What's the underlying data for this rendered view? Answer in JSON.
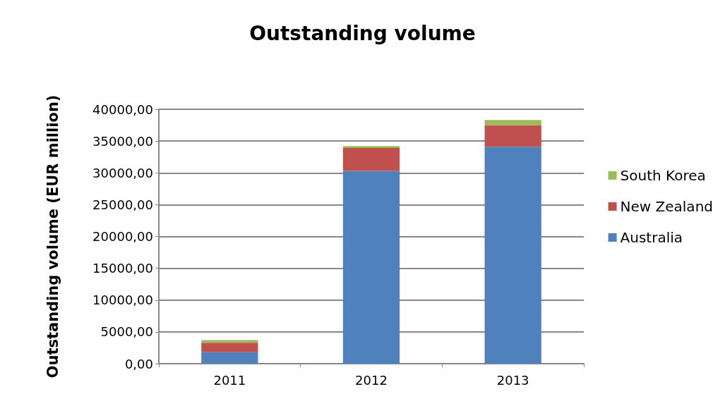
{
  "chart_data": {
    "type": "bar",
    "title": "Outstanding volume",
    "ylabel": "Outstanding volume (EUR million)",
    "categories": [
      "2011",
      "2012",
      "2013"
    ],
    "stacked": true,
    "series": [
      {
        "name": "Australia",
        "color": "#4f81bd",
        "values": [
          1800,
          30300,
          34100
        ]
      },
      {
        "name": "New Zealand",
        "color": "#c0504d",
        "values": [
          1500,
          3600,
          3400
        ]
      },
      {
        "name": "South Korea",
        "color": "#9bbb59",
        "values": [
          400,
          300,
          800
        ]
      }
    ],
    "ylim": [
      0,
      40000
    ],
    "yticks": [
      {
        "value": 0,
        "label": "0,00"
      },
      {
        "value": 5000,
        "label": "5000,00"
      },
      {
        "value": 10000,
        "label": "10000,00"
      },
      {
        "value": 15000,
        "label": "15000,00"
      },
      {
        "value": 20000,
        "label": "20000,00"
      },
      {
        "value": 25000,
        "label": "25000,00"
      },
      {
        "value": 30000,
        "label": "30000,00"
      },
      {
        "value": 35000,
        "label": "35000,00"
      },
      {
        "value": 40000,
        "label": "40000,00"
      }
    ],
    "grid": "y",
    "legend": "right"
  }
}
